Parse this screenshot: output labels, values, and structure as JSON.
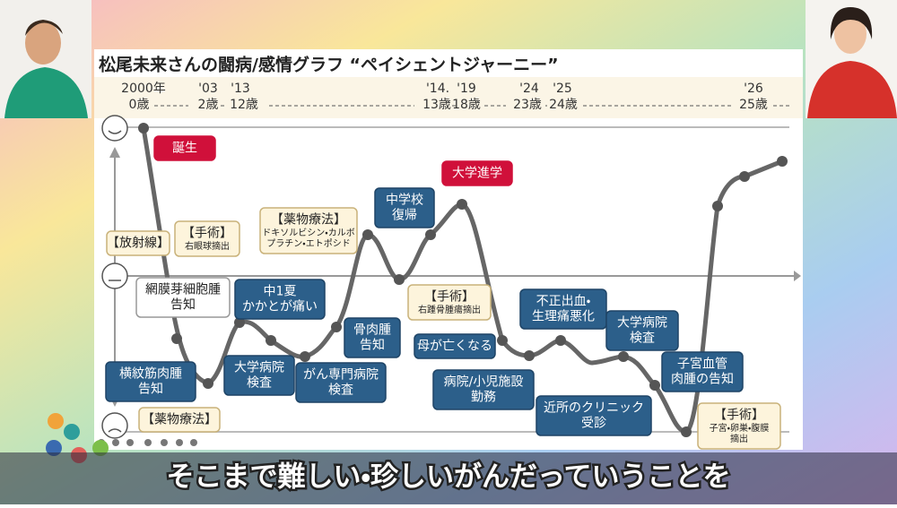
{
  "slide": {
    "title": "松尾未来さんの闘病/感情グラフ “ペイシェントジャーニー”",
    "timeline": {
      "years": [
        "2000年",
        "'03",
        "'13",
        "'14.",
        "'19",
        "'24",
        "'25",
        "'26"
      ],
      "ages": [
        "0歳",
        "2歳",
        "12歳",
        "13歳",
        "18歳",
        "23歳",
        "24歳",
        "25歳"
      ]
    },
    "events": [
      {
        "lines": [
          "誕生"
        ]
      },
      {
        "lines": [
          "大学進学"
        ]
      },
      {
        "lines": [
          "中学校",
          "復帰"
        ]
      },
      {
        "lines": [
          "中1夏",
          "かかとが痛い"
        ]
      },
      {
        "lines": [
          "骨肉腫",
          "告知"
        ]
      },
      {
        "lines": [
          "大学病院",
          "検査"
        ]
      },
      {
        "lines": [
          "がん専門病院",
          "検査"
        ]
      },
      {
        "lines": [
          "横紋筋肉腫",
          "告知"
        ]
      },
      {
        "lines": [
          "母が亡くなる"
        ]
      },
      {
        "lines": [
          "病院/小児施設",
          "勤務"
        ]
      },
      {
        "lines": [
          "不正出血・",
          "生理痛悪化"
        ]
      },
      {
        "lines": [
          "近所のクリニック",
          "受診"
        ]
      },
      {
        "lines": [
          "大学病院",
          "検査"
        ]
      },
      {
        "lines": [
          "子宮血管",
          "肉腫の告知"
        ]
      },
      {
        "lines": [
          "【放射線】"
        ]
      },
      {
        "lines": [
          "【手術】",
          "右眼球摘出"
        ]
      },
      {
        "lines": [
          "【薬物療法】",
          "ドキソルビシン・カルボ",
          "プラチン・エトポシド"
        ]
      },
      {
        "lines": [
          "【手術】",
          "右踵骨腫瘍摘出"
        ]
      },
      {
        "lines": [
          "【薬物療法】"
        ]
      },
      {
        "lines": [
          "【手術】",
          "子宮・卵巣・腹膜",
          "摘出"
        ]
      },
      {
        "lines": [
          "網膜芽細胞腫",
          "告知"
        ]
      }
    ]
  },
  "caption": "そこまで難しい・珍しいがんだっていうことを"
}
